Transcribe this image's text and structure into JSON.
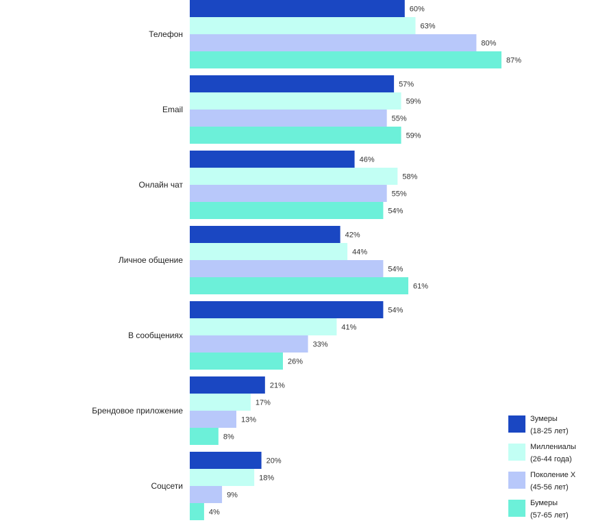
{
  "chart_data": {
    "type": "bar",
    "orientation": "horizontal",
    "categories": [
      "Телефон",
      "Email",
      "Онлайн чат",
      "Личное общение",
      "В сообщениях",
      "Брендовое приложение",
      "Соцсети"
    ],
    "series": [
      {
        "name": "Зумеры",
        "detail": "(18-25 лет)",
        "color": "#1a47c2",
        "values": [
          60,
          57,
          46,
          42,
          54,
          21,
          20
        ]
      },
      {
        "name": "Миллениалы",
        "detail": "(26-44 года)",
        "color": "#c2fff4",
        "values": [
          63,
          59,
          58,
          44,
          41,
          17,
          18
        ]
      },
      {
        "name": "Поколение X",
        "detail": "(45-56 лет)",
        "color": "#b8c8fa",
        "values": [
          80,
          55,
          55,
          54,
          33,
          13,
          9
        ]
      },
      {
        "name": "Бумеры",
        "detail": "(57-65 лет)",
        "color": "#6cf0d9",
        "values": [
          87,
          59,
          54,
          61,
          26,
          8,
          4
        ]
      }
    ],
    "value_suffix": "%",
    "xlim": [
      0,
      100
    ],
    "grid": false,
    "legend_position": "bottom-right"
  }
}
